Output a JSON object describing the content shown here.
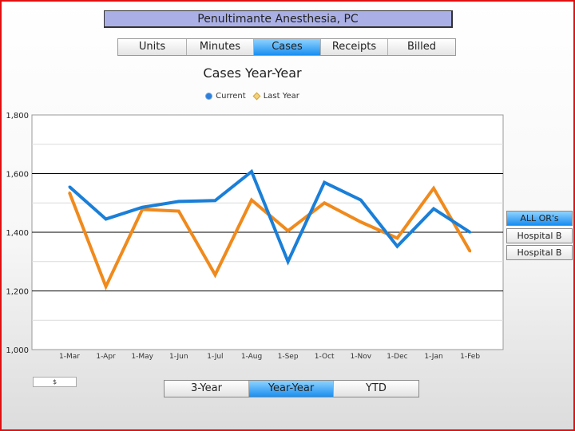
{
  "header": {
    "title": "Penultimante Anesthesia, PC"
  },
  "tabs": [
    {
      "label": "Units",
      "active": false
    },
    {
      "label": "Minutes",
      "active": false
    },
    {
      "label": "Cases",
      "active": true
    },
    {
      "label": "Receipts",
      "active": false
    },
    {
      "label": "Billed",
      "active": false
    }
  ],
  "side_buttons": [
    {
      "label": "ALL OR's",
      "active": true
    },
    {
      "label": "Hospital B",
      "active": false
    },
    {
      "label": "Hospital B",
      "active": false
    }
  ],
  "bottom_tabs": [
    {
      "label": "3-Year",
      "active": false
    },
    {
      "label": "Year-Year",
      "active": true
    },
    {
      "label": "YTD",
      "active": false
    }
  ],
  "small_box_text": "$",
  "colors": {
    "current": "#1a7fd8",
    "last_year": "#f08a1c",
    "active_tab": "#1b8ef0"
  },
  "chart_data": {
    "type": "line",
    "title": "Cases Year-Year",
    "xlabel": "",
    "ylabel": "",
    "categories": [
      "1-Mar",
      "1-Apr",
      "1-May",
      "1-Jun",
      "1-Jul",
      "1-Aug",
      "1-Sep",
      "1-Oct",
      "1-Nov",
      "1-Dec",
      "1-Jan",
      "1-Feb"
    ],
    "ylim": [
      1000,
      1800
    ],
    "yticks": [
      "1,000",
      "1,200",
      "1,400",
      "1,600",
      "1,800"
    ],
    "grid": true,
    "legend_position": "top",
    "series": [
      {
        "name": "Current",
        "color": "#1a7fd8",
        "values": [
          1555,
          1445,
          1485,
          1505,
          1508,
          1607,
          1300,
          1570,
          1510,
          1352,
          1480,
          1400
        ]
      },
      {
        "name": "Last Year",
        "color": "#f08a1c",
        "values": [
          1535,
          1215,
          1478,
          1472,
          1255,
          1510,
          1405,
          1500,
          1435,
          1380,
          1550,
          1335
        ]
      }
    ]
  }
}
